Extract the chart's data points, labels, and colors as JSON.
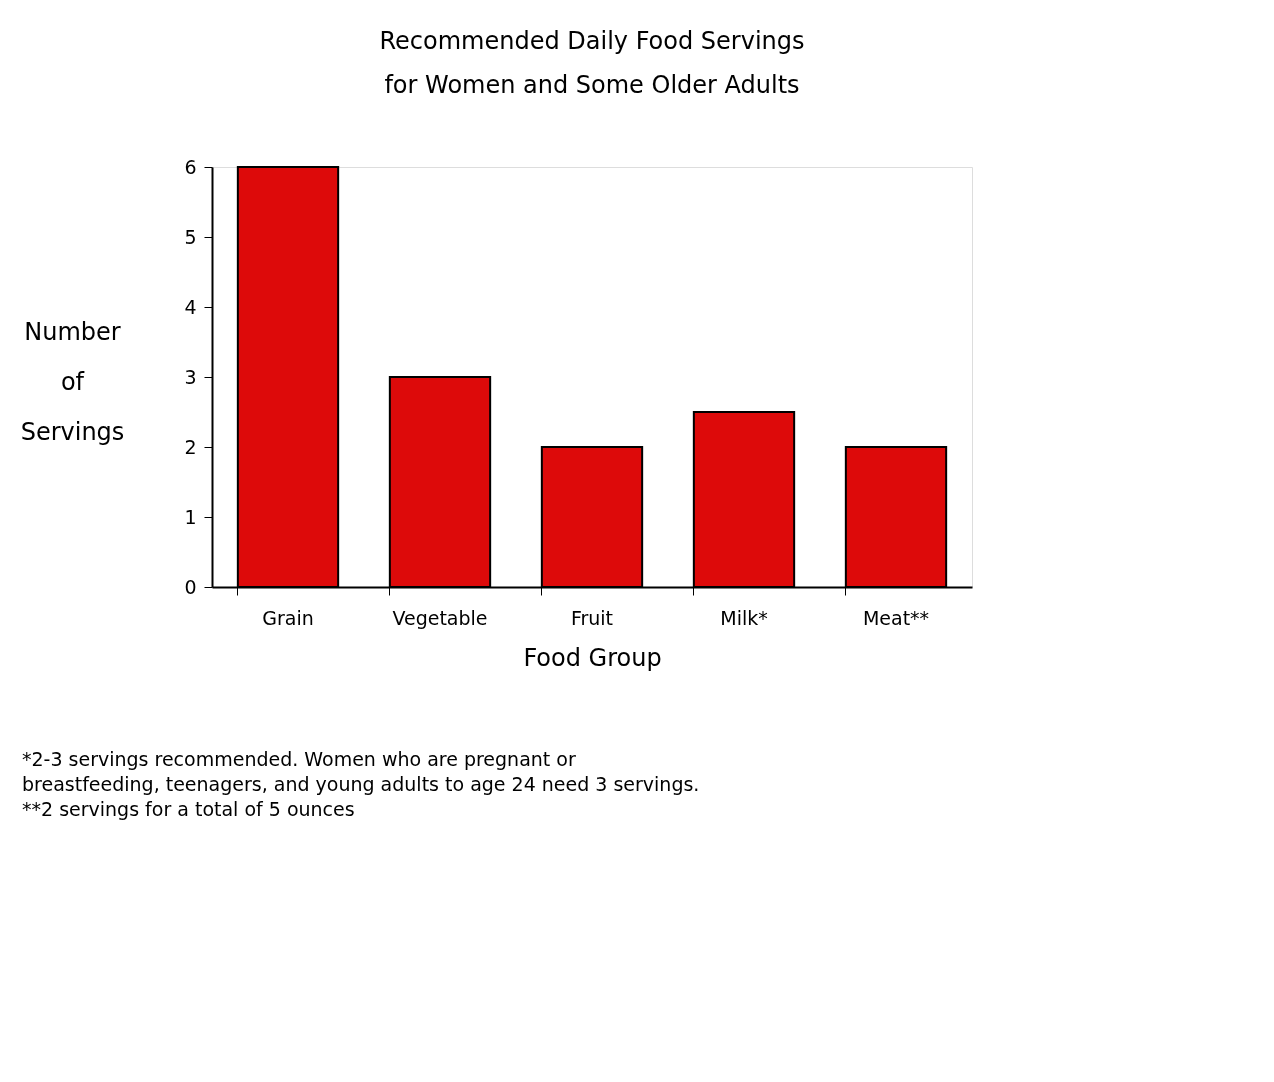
{
  "chart_data": {
    "type": "bar",
    "title": [
      "Recommended Daily Food Servings",
      "for Women and Some Older Adults"
    ],
    "xlabel": "Food Group",
    "ylabel": [
      "Number",
      "of",
      "Servings"
    ],
    "categories": [
      "Grain",
      "Vegetable",
      "Fruit",
      "Milk*",
      "Meat**"
    ],
    "values": [
      6,
      3,
      2,
      2.5,
      2
    ],
    "color": "#dd0a0a",
    "ylim": [
      0,
      6
    ],
    "yticks": [
      0,
      1,
      2,
      3,
      4,
      5,
      6
    ],
    "grid": false,
    "annotations": [
      "*2-3 servings recommended.  Women who are pregnant or",
      "breastfeeding, teenagers, and young adults to age 24 need 3 servings.",
      "**2 servings for a total of 5 ounces"
    ]
  }
}
